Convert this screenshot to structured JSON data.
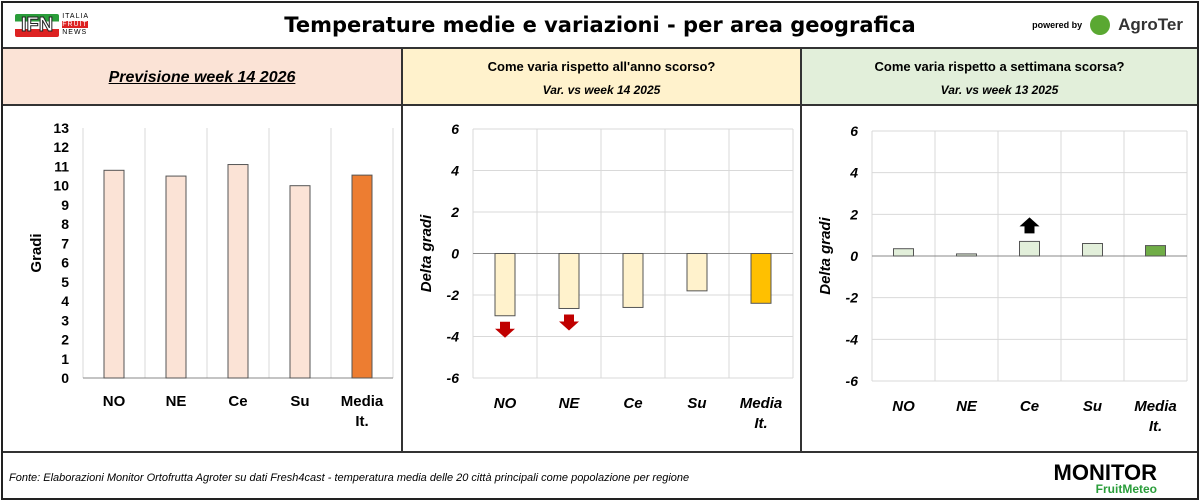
{
  "header": {
    "title": "Temperature medie e variazioni - per area geografica",
    "logo_left": "IFN ITALIA FRUIT NEWS",
    "powered_by": "powered by",
    "logo_right": "AgroTer"
  },
  "panels": [
    {
      "title": "Previsione week 14 2026"
    },
    {
      "title": "Come varia rispetto all'anno scorso?",
      "subtitle": "Var. vs week 14 2025"
    },
    {
      "title": "Come varia rispetto a settimana scorsa?",
      "subtitle": "Var. vs week 13 2025"
    }
  ],
  "footer": {
    "source": "Fonte: Elaborazioni Monitor Ortofrutta Agroter su dati Fresh4cast - temperatura media delle 20 città principali come popolazione per regione",
    "logo": "MONITOR FruitMeteo"
  },
  "chart_data": [
    {
      "type": "bar",
      "categories": [
        "NO",
        "NE",
        "Ce",
        "Su",
        "Media It."
      ],
      "values": [
        10.8,
        10.5,
        11.1,
        10.0,
        10.55
      ],
      "ylabel": "Gradi",
      "ylim": [
        0,
        13
      ],
      "ticks": [
        0,
        1,
        2,
        3,
        4,
        5,
        6,
        7,
        8,
        9,
        10,
        11,
        12,
        13
      ],
      "colors": [
        "#fbe3d6",
        "#fbe3d6",
        "#fbe3d6",
        "#fbe3d6",
        "#ed7d31"
      ],
      "grid": "vertical",
      "italic": false
    },
    {
      "type": "bar",
      "categories": [
        "NO",
        "NE",
        "Ce",
        "Su",
        "Media It."
      ],
      "values": [
        -3.0,
        -2.65,
        -2.6,
        -1.8,
        -2.4
      ],
      "ylabel": "Delta gradi",
      "ylim": [
        -6,
        6
      ],
      "ticks": [
        -6,
        -4,
        -2,
        0,
        2,
        4,
        6
      ],
      "colors": [
        "#fff2cc",
        "#fff2cc",
        "#fff2cc",
        "#fff2cc",
        "#ffc000"
      ],
      "grid": "both",
      "italic": true,
      "arrows": [
        {
          "category": "NO",
          "direction": "down",
          "color": "#c00000"
        },
        {
          "category": "NE",
          "direction": "down",
          "color": "#c00000"
        }
      ]
    },
    {
      "type": "bar",
      "categories": [
        "NO",
        "NE",
        "Ce",
        "Su",
        "Media It."
      ],
      "values": [
        0.35,
        0.1,
        0.7,
        0.6,
        0.5
      ],
      "ylabel": "Delta gradi",
      "ylim": [
        -6,
        6
      ],
      "ticks": [
        -6,
        -4,
        -2,
        0,
        2,
        4,
        6
      ],
      "colors": [
        "#e2efda",
        "#e2efda",
        "#e2efda",
        "#e2efda",
        "#70ad47"
      ],
      "grid": "both",
      "italic": true,
      "arrows": [
        {
          "category": "Ce",
          "direction": "up",
          "color": "#000000"
        }
      ]
    }
  ]
}
